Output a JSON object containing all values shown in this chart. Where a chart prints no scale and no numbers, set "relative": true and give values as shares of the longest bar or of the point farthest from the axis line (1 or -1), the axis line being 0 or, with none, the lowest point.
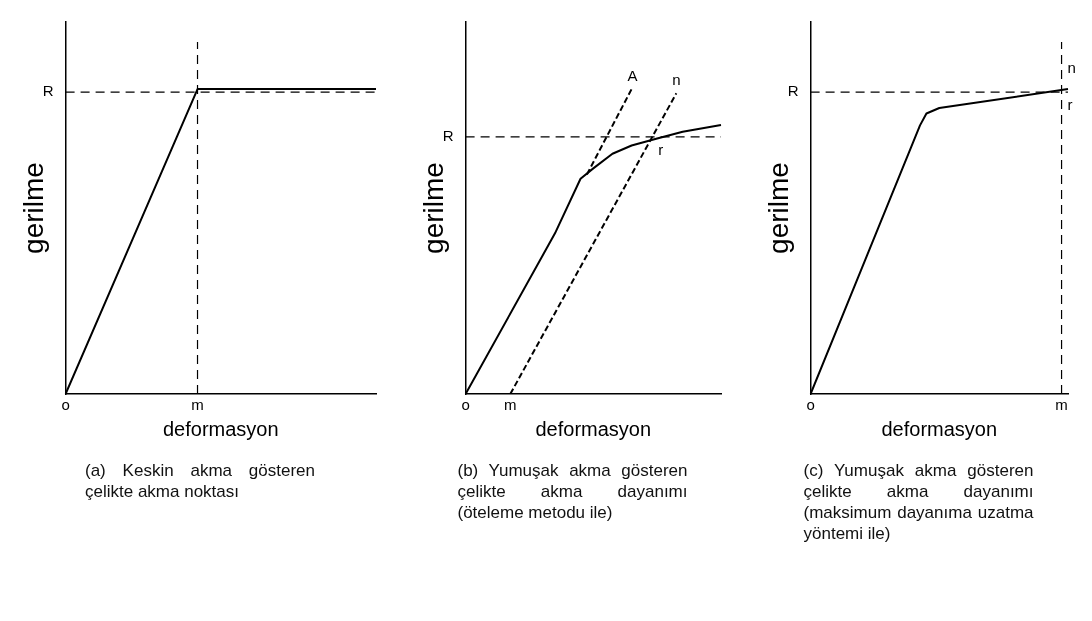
{
  "chart_data": [
    {
      "type": "line",
      "title": "(a) Keskin akma gösteren çelikte akma noktası",
      "xlabel": "deformasyon",
      "ylabel": "gerilme",
      "relative": true,
      "categories": [
        "o",
        null,
        null,
        null,
        null,
        null,
        null,
        null,
        null,
        null,
        null,
        null,
        null,
        null,
        null,
        null,
        null,
        "m",
        null,
        null,
        null,
        null,
        null,
        null,
        null,
        null,
        null,
        null,
        null,
        null,
        null,
        null,
        null,
        null,
        null,
        null,
        null,
        null,
        null,
        null,
        null
      ],
      "series": [
        {
          "color": "#000000",
          "values": [
            0,
            null,
            null,
            null,
            null,
            null,
            null,
            null,
            null,
            null,
            null,
            null,
            null,
            null,
            null,
            null,
            null,
            1,
            null,
            null,
            null,
            null,
            null,
            null,
            null,
            null,
            null,
            null,
            null,
            null,
            null,
            null,
            null,
            null,
            null,
            null,
            null,
            null,
            null,
            null,
            1
          ]
        }
      ],
      "ref_lines": [
        {
          "axis": "y",
          "value": 0.99,
          "label": "R",
          "line_style": "dashed"
        },
        {
          "axis": "x",
          "value": "m",
          "line_style": "dashed"
        }
      ]
    },
    {
      "type": "line",
      "title": "(b) Yumuşak akma gösteren çelikte akma dayanımı (öteleme metodu ile)",
      "xlabel": "deformasyon",
      "ylabel": "gerilme",
      "relative": true,
      "categories": [
        "o",
        null,
        null,
        null,
        null,
        null,
        null,
        "m",
        null,
        null,
        null,
        null,
        null,
        null,
        null,
        null,
        null,
        null,
        null,
        null,
        null,
        null,
        null,
        null,
        null,
        null,
        null,
        null,
        null,
        null,
        null,
        null,
        null,
        null,
        null,
        null,
        null,
        null,
        null,
        null,
        null
      ],
      "series": [
        {
          "color": "#000000",
          "values": [
            0,
            null,
            null,
            null,
            null,
            null,
            null,
            null,
            null,
            null,
            null,
            null,
            null,
            null,
            0.527,
            null,
            null,
            null,
            0.706,
            null,
            0.74,
            null,
            null,
            0.788,
            null,
            null,
            0.815,
            null,
            null,
            null,
            0.838,
            null,
            null,
            null,
            0.86,
            null,
            null,
            null,
            null,
            null,
            0.882
          ]
        },
        {
          "name": "A",
          "color": "#000000",
          "line_style": "dashed",
          "values": [
            null,
            null,
            null,
            null,
            null,
            null,
            null,
            null,
            null,
            null,
            null,
            null,
            null,
            null,
            null,
            null,
            null,
            null,
            null,
            0.72,
            null,
            null,
            null,
            null,
            null,
            null,
            1,
            null,
            null,
            null,
            null,
            null,
            null,
            null,
            null,
            null,
            null,
            null,
            null,
            null,
            null
          ]
        },
        {
          "name": "n",
          "color": "#000000",
          "line_style": "dashed",
          "values": [
            null,
            null,
            null,
            null,
            null,
            null,
            null,
            0,
            null,
            null,
            null,
            null,
            null,
            null,
            null,
            null,
            null,
            null,
            null,
            null,
            null,
            null,
            null,
            null,
            null,
            null,
            null,
            null,
            null,
            null,
            null,
            null,
            null,
            0.986,
            null,
            null,
            null,
            null,
            null,
            null,
            null
          ]
        }
      ],
      "ref_lines": [
        {
          "axis": "y",
          "value": 0.843,
          "label": "R",
          "line_style": "dashed"
        }
      ],
      "annotations": [
        {
          "text": "r",
          "y": 0.843
        }
      ]
    },
    {
      "type": "line",
      "title": "(c) Yumuşak akma gösteren çelikte akma dayanımı (maksimum dayanıma uzatma yöntemi ile)",
      "xlabel": "deformasyon",
      "ylabel": "gerilme",
      "relative": true,
      "categories": [
        "o",
        null,
        null,
        null,
        null,
        null,
        null,
        null,
        null,
        null,
        null,
        null,
        null,
        null,
        null,
        null,
        null,
        null,
        null,
        null,
        null,
        null,
        null,
        null,
        null,
        null,
        null,
        null,
        null,
        null,
        null,
        null,
        null,
        null,
        null,
        null,
        null,
        null,
        null,
        "m",
        null
      ],
      "series": [
        {
          "color": "#000000",
          "values": [
            0,
            null,
            null,
            null,
            null,
            null,
            null,
            null,
            null,
            null,
            null,
            null,
            null,
            null,
            null,
            null,
            null,
            0.881,
            0.92,
            null,
            0.938,
            null,
            null,
            null,
            null,
            null,
            null,
            null,
            null,
            null,
            null,
            null,
            null,
            null,
            null,
            null,
            null,
            null,
            null,
            null,
            1
          ]
        }
      ],
      "ref_lines": [
        {
          "axis": "y",
          "value": 0.99,
          "label": "R",
          "line_style": "dashed"
        },
        {
          "axis": "x",
          "value": "m",
          "line_style": "dashed"
        }
      ],
      "annotations": [
        {
          "text": "n",
          "x": "m",
          "y": 1.11
        },
        {
          "text": "r",
          "x": "m",
          "y": 0.99
        }
      ]
    }
  ]
}
